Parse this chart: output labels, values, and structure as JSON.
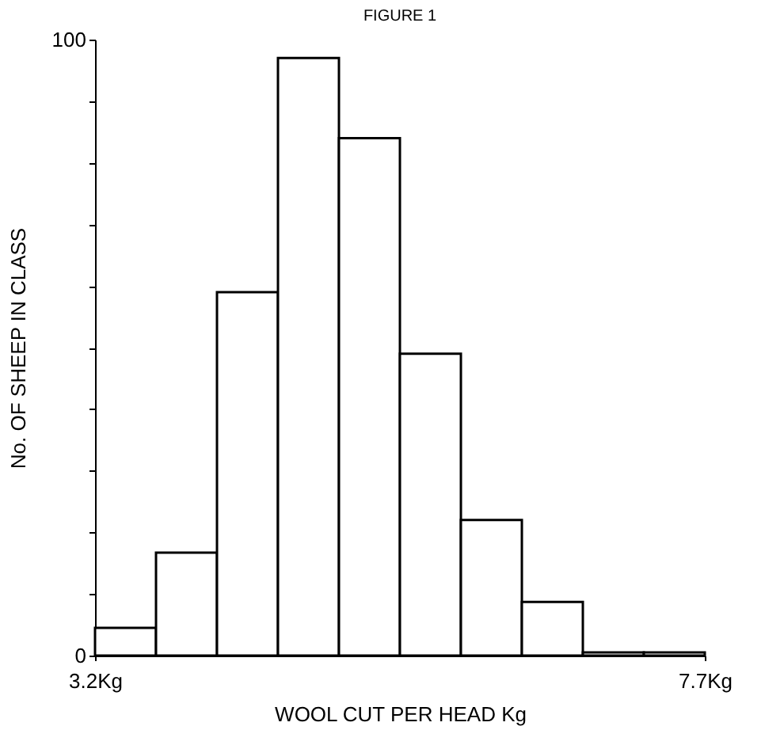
{
  "chart_data": {
    "type": "histogram",
    "title": "FIGURE 1",
    "xlabel": "WOOL CUT PER HEAD Kg",
    "ylabel": "No. OF SHEEP IN CLASS",
    "bins": [
      3.2,
      3.65,
      4.1,
      4.55,
      5.0,
      5.45,
      5.9,
      6.35,
      6.8,
      7.25,
      7.7
    ],
    "values": [
      4.5,
      16.7,
      59,
      97,
      84,
      49,
      22,
      8.7,
      0.5,
      0.5
    ],
    "color": "#ffffff",
    "xlim": [
      3.2,
      7.7
    ],
    "xticks": [
      {
        "value": 3.2,
        "label": "3.2Kg"
      },
      {
        "value": 7.7,
        "label": "7.7Kg"
      }
    ],
    "ylim": [
      0,
      100
    ],
    "yticks": [
      0,
      {
        "value": 10,
        "label": null
      },
      {
        "value": 20,
        "label": null
      },
      {
        "value": 30,
        "label": null
      },
      {
        "value": 40,
        "label": null
      },
      {
        "value": 50,
        "label": null
      },
      {
        "value": 60,
        "label": null
      },
      {
        "value": 70,
        "label": null
      },
      {
        "value": 80,
        "label": null
      },
      {
        "value": 90,
        "label": null
      },
      100
    ],
    "grid": false
  }
}
